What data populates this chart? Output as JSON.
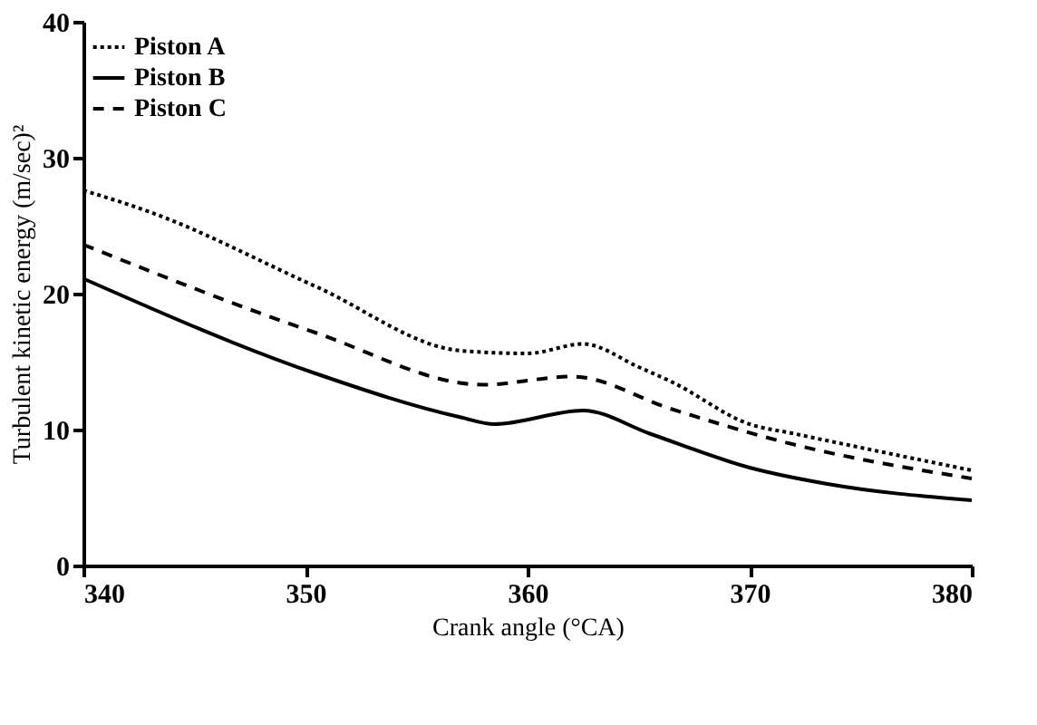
{
  "chart_data": {
    "type": "line",
    "xlabel": "Crank angle (°CA)",
    "ylabel": "Turbulent kinetic energy (m/sec)²",
    "xlim": [
      340,
      380
    ],
    "ylim": [
      0,
      40
    ],
    "xticks": [
      340,
      350,
      360,
      370,
      380
    ],
    "yticks": [
      0,
      10,
      20,
      30,
      40
    ],
    "grid": false,
    "legend": "top left",
    "marker": "none",
    "series": [
      {
        "name": "Piston A",
        "color": "#000000",
        "line_style": "dotted",
        "x": [
          340,
          343,
          350.5,
          357,
          360,
          362.5,
          365,
          366.5,
          370,
          372,
          380
        ],
        "values": [
          27.6,
          26,
          20.5,
          15.8,
          15.6,
          16.3,
          14.6,
          13.5,
          10.4,
          9.7,
          7
        ]
      },
      {
        "name": "Piston B",
        "color": "#000000",
        "line_style": "solid",
        "x": [
          340,
          350.5,
          357,
          358.5,
          362.5,
          365.5,
          370,
          373.5,
          380
        ],
        "values": [
          21.1,
          14.1,
          10.9,
          10.4,
          11.4,
          9.7,
          7.2,
          6,
          4.8
        ]
      },
      {
        "name": "Piston C",
        "color": "#000000",
        "line_style": "dashed",
        "x": [
          340,
          350.5,
          358,
          362,
          366.5,
          371.5,
          380
        ],
        "values": [
          23.6,
          17.1,
          13.3,
          13.9,
          11.5,
          9.1,
          6.4
        ]
      }
    ]
  }
}
